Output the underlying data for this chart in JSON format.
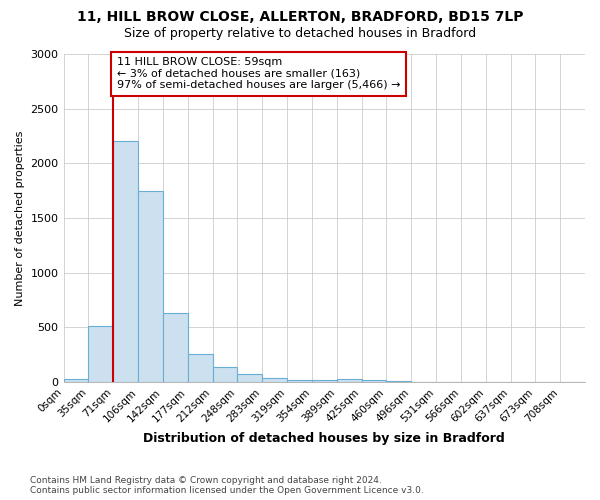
{
  "title_line1": "11, HILL BROW CLOSE, ALLERTON, BRADFORD, BD15 7LP",
  "title_line2": "Size of property relative to detached houses in Bradford",
  "xlabel": "Distribution of detached houses by size in Bradford",
  "ylabel": "Number of detached properties",
  "bar_labels": [
    "0sqm",
    "35sqm",
    "71sqm",
    "106sqm",
    "142sqm",
    "177sqm",
    "212sqm",
    "248sqm",
    "283sqm",
    "319sqm",
    "354sqm",
    "389sqm",
    "425sqm",
    "460sqm",
    "496sqm",
    "531sqm",
    "566sqm",
    "602sqm",
    "637sqm",
    "673sqm",
    "708sqm"
  ],
  "bar_values": [
    30,
    510,
    2200,
    1750,
    630,
    260,
    140,
    75,
    40,
    20,
    15,
    30,
    15,
    5,
    0,
    0,
    0,
    0,
    0,
    0,
    0
  ],
  "bar_color": "#cce0f0",
  "bar_edge_color": "#6aaed6",
  "bar_edge_width": 0.8,
  "grid_color": "#cccccc",
  "annotation_text": "11 HILL BROW CLOSE: 59sqm\n← 3% of detached houses are smaller (163)\n97% of semi-detached houses are larger (5,466) →",
  "annotation_box_color": "#ffffff",
  "annotation_box_edge_color": "#cc0000",
  "red_line_x_label": "71sqm",
  "ylim": [
    0,
    3000
  ],
  "yticks": [
    0,
    500,
    1000,
    1500,
    2000,
    2500,
    3000
  ],
  "footnote": "Contains HM Land Registry data © Crown copyright and database right 2024.\nContains public sector information licensed under the Open Government Licence v3.0.",
  "background_color": "#ffffff"
}
